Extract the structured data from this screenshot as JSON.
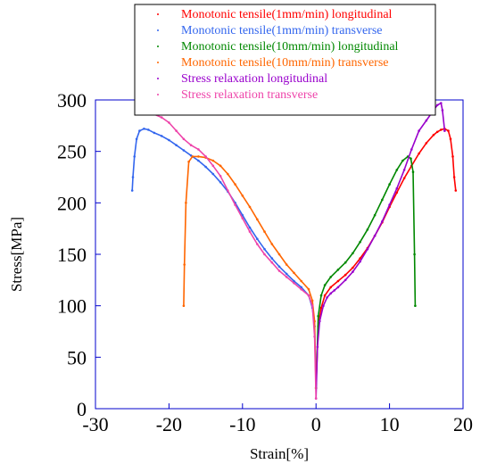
{
  "chart_data": {
    "type": "scatter",
    "title": "",
    "xlabel": "Strain[%]",
    "ylabel": "Stress[MPa]",
    "xlim": [
      -30,
      20
    ],
    "ylim": [
      0,
      300
    ],
    "x_ticks": [
      -30,
      -20,
      -10,
      0,
      10,
      20
    ],
    "y_ticks": [
      0,
      50,
      100,
      150,
      200,
      250,
      300
    ],
    "x_tick_labels": [
      "-30",
      "-20",
      "-10",
      "0",
      "10",
      "20"
    ],
    "y_tick_labels": [
      "0",
      "50",
      "100",
      "150",
      "200",
      "250",
      "300"
    ],
    "grid": false,
    "legend_position": "top-center",
    "series": [
      {
        "name": "Monotonic tensile(1mm/min) longitudinal",
        "color": "#ff0000",
        "x": [
          0,
          0.3,
          0.7,
          1.2,
          2,
          3,
          4,
          5,
          6,
          7,
          8,
          9,
          10,
          11,
          12,
          13,
          14,
          15,
          16,
          16.5,
          17,
          17.5,
          18,
          18.3,
          18.6,
          18.8,
          19
        ],
        "y": [
          20,
          80,
          98,
          110,
          118,
          124,
          130,
          137,
          146,
          156,
          168,
          181,
          196,
          210,
          224,
          236,
          248,
          258,
          266,
          269,
          271,
          272,
          270,
          262,
          245,
          225,
          212
        ]
      },
      {
        "name": "Monotonic tensile(1mm/min) transverse",
        "color": "#3366ee",
        "x": [
          0,
          -0.2,
          -0.5,
          -1,
          -2,
          -3,
          -4,
          -5,
          -6,
          -7,
          -8,
          -9,
          -10,
          -11,
          -12,
          -13,
          -14,
          -15,
          -16,
          -17,
          -18,
          -19,
          -20,
          -21,
          -22,
          -22.8,
          -23.4,
          -24,
          -24.4,
          -24.7,
          -24.9,
          -25
        ],
        "y": [
          20,
          80,
          98,
          110,
          118,
          124,
          131,
          138,
          146,
          155,
          165,
          176,
          188,
          200,
          211,
          220,
          228,
          235,
          241,
          246,
          251,
          256,
          261,
          265,
          268,
          271,
          272,
          270,
          262,
          245,
          225,
          212
        ]
      },
      {
        "name": "Monotonic tensile(10mm/min) longitudinal",
        "color": "#008800",
        "x": [
          0,
          0.3,
          0.7,
          1.2,
          2,
          3,
          4,
          5,
          6,
          7,
          8,
          9,
          10,
          11,
          11.8,
          12.5,
          12.9,
          13.2,
          13.4,
          13.5
        ],
        "y": [
          20,
          90,
          110,
          120,
          128,
          135,
          142,
          151,
          162,
          174,
          188,
          203,
          218,
          232,
          241,
          245,
          243,
          230,
          150,
          100
        ]
      },
      {
        "name": "Monotonic tensile(10mm/min) transverse",
        "color": "#ff6600",
        "x": [
          0,
          -0.2,
          -0.5,
          -1,
          -2,
          -3,
          -4,
          -5,
          -6,
          -7,
          -8,
          -9,
          -10,
          -11,
          -12,
          -13,
          -14,
          -15,
          -16,
          -16.8,
          -17.3,
          -17.7,
          -17.9,
          -18
        ],
        "y": [
          20,
          85,
          105,
          116,
          124,
          132,
          140,
          150,
          160,
          172,
          184,
          196,
          207,
          218,
          228,
          236,
          241,
          244,
          245,
          245,
          240,
          200,
          140,
          100
        ]
      },
      {
        "name": "Stress relaxation longitudinal",
        "color": "#9900cc",
        "x": [
          0,
          0.2,
          0.5,
          1,
          1.5,
          2,
          2.5,
          3,
          4,
          5,
          6,
          7,
          8,
          9,
          10,
          11,
          12,
          13,
          14,
          15,
          16,
          16.5,
          17,
          17.2,
          17.5
        ],
        "y": [
          10,
          60,
          85,
          100,
          108,
          112,
          115,
          118,
          125,
          133,
          143,
          155,
          168,
          182,
          198,
          214,
          232,
          252,
          270,
          280,
          290,
          295,
          297,
          290,
          270
        ]
      },
      {
        "name": "Stress relaxation transverse",
        "color": "#ee44aa",
        "x": [
          0,
          -0.2,
          -0.5,
          -1,
          -2,
          -3,
          -4,
          -5,
          -6,
          -7,
          -8,
          -9,
          -10,
          -11,
          -12,
          -13,
          -14,
          -15,
          -16,
          -17,
          -18,
          -19,
          -20,
          -21,
          -22,
          -23
        ],
        "y": [
          10,
          70,
          100,
          110,
          116,
          122,
          128,
          134,
          142,
          150,
          160,
          172,
          185,
          198,
          212,
          226,
          236,
          245,
          252,
          256,
          262,
          270,
          278,
          283,
          286,
          288
        ]
      }
    ]
  }
}
